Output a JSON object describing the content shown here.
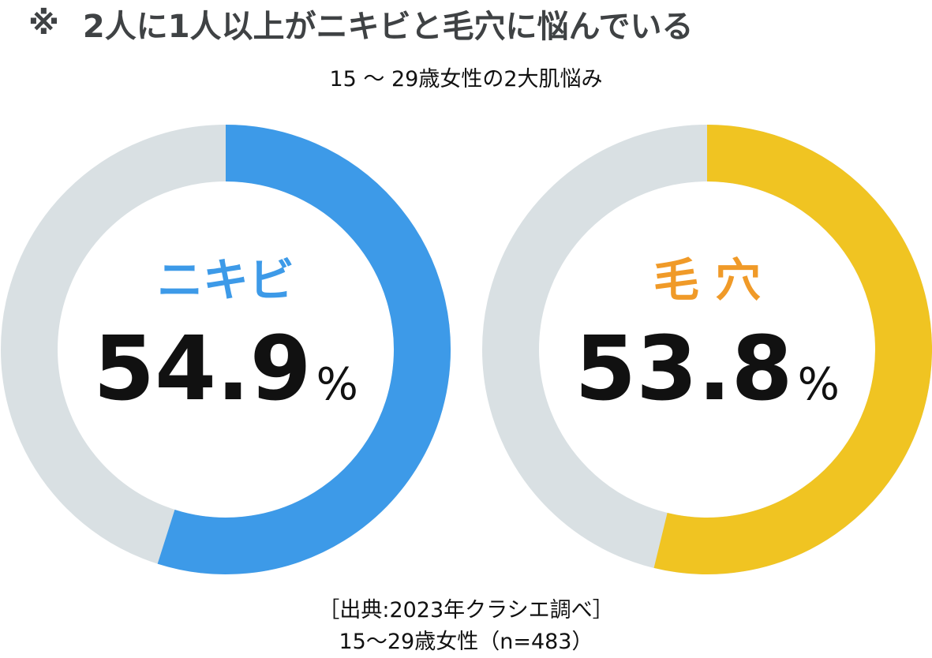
{
  "header": {
    "mark": "※",
    "title": "2人に1人以上がニキビと毛穴に悩んでいる"
  },
  "subtitle": "15 ～ 29歳女性の2大肌悩み",
  "chart_data": [
    {
      "type": "pie",
      "name": "ニキビ",
      "value": 54.9,
      "value_label": "54.9",
      "unit": "%",
      "range": [
        0,
        100
      ],
      "color": "#3d9ae8",
      "label_color": "#3d9ae8",
      "track_color": "#d9e0e3"
    },
    {
      "type": "pie",
      "name": "毛 穴",
      "value": 53.8,
      "value_label": "53.8",
      "unit": "%",
      "range": [
        0,
        100
      ],
      "color": "#f0c422",
      "label_color": "#f09a28",
      "track_color": "#d9e0e3"
    }
  ],
  "source": {
    "line1": "［出典:2023年クラシエ調べ］",
    "line2": "15～29歳女性（n=483）"
  }
}
